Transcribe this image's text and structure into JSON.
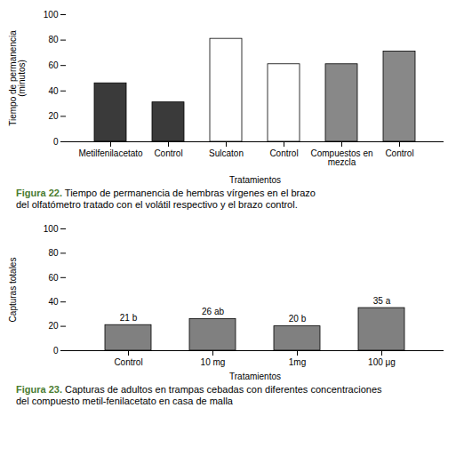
{
  "chart_data": [
    {
      "type": "bar",
      "categories": [
        "Metilfenilacetato",
        "Control",
        "Sulcaton",
        "Control",
        "Compuestos en\nmezcla",
        "Control"
      ],
      "values": [
        46,
        31,
        81,
        61,
        61,
        71
      ],
      "colors": [
        "#3a3a3a",
        "#3a3a3a",
        "#ffffff",
        "#ffffff",
        "#888888",
        "#888888"
      ],
      "ylabel": "Tiempo de permanencia\n(minutos)",
      "xlabel": "Tratamientos",
      "ylim": [
        0,
        100
      ],
      "yticks": [
        0,
        20,
        40,
        60,
        80,
        100
      ],
      "grid": false,
      "annotations": [
        {
          "text": "Figura 22.",
          "color": "#4a7c2f"
        },
        {
          "text": "Tiempo de permanencia de hembras vírgenes en el brazo\ndel olfatómetro tratado con el volátil respectivo y el brazo control.",
          "color": "#000000"
        }
      ]
    },
    {
      "type": "bar",
      "categories": [
        "Control",
        "10 mg",
        "1mg",
        "100 μg"
      ],
      "values": [
        21,
        26,
        20,
        35
      ],
      "value_labels": [
        "21 b",
        "26 ab",
        "20 b",
        "35 a"
      ],
      "data_labels": true,
      "color": "#808080",
      "ylabel": "Capturas totales",
      "xlabel": "Tratamientos",
      "ylim": [
        0,
        100
      ],
      "yticks": [
        0,
        20,
        40,
        60,
        80,
        100
      ],
      "grid": false,
      "annotations": [
        {
          "text": "Figura 23.",
          "color": "#4a7c2f"
        },
        {
          "text": "Capturas de adultos en trampas cebadas con diferentes concentraciones\ndel compuesto metil-fenilacetato en casa de malla",
          "color": "#000000"
        }
      ]
    }
  ]
}
